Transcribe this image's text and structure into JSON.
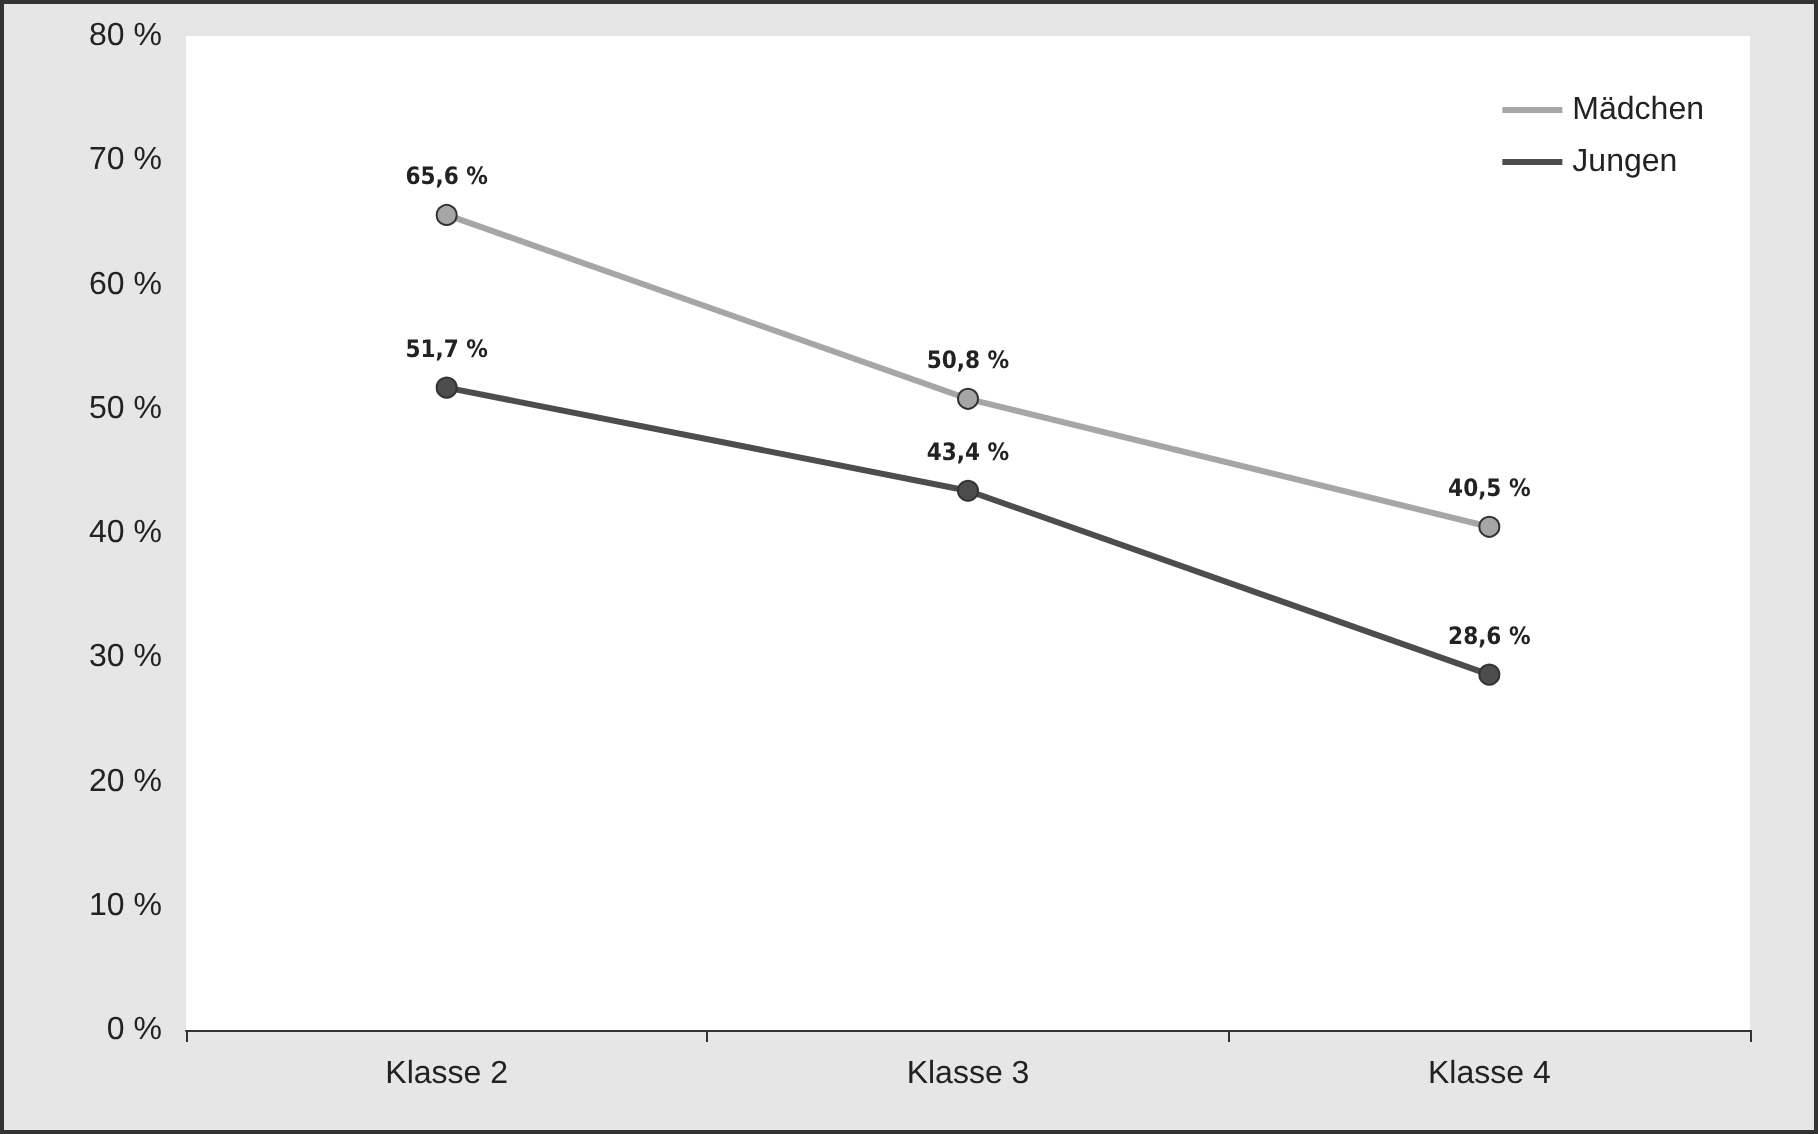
{
  "chart_data": {
    "type": "line",
    "categories": [
      "Klasse 2",
      "Klasse 3",
      "Klasse 4"
    ],
    "series": [
      {
        "name": "Mädchen",
        "color": "#a6a6a6",
        "values": [
          65.6,
          50.8,
          40.5
        ],
        "value_labels": [
          "65,6 %",
          "50,8 %",
          "40,5 %"
        ]
      },
      {
        "name": "Jungen",
        "color": "#4d4d4d",
        "values": [
          51.7,
          43.4,
          28.6
        ],
        "value_labels": [
          "51,7 %",
          "43,4 %",
          "28,6 %"
        ]
      }
    ],
    "ylim": [
      0,
      80
    ],
    "yticks": [
      {
        "value": 0,
        "label": "0 %"
      },
      {
        "value": 10,
        "label": "10 %"
      },
      {
        "value": 20,
        "label": "20 %"
      },
      {
        "value": 30,
        "label": "30 %"
      },
      {
        "value": 40,
        "label": "40 %"
      },
      {
        "value": 50,
        "label": "50 %"
      },
      {
        "value": 60,
        "label": "60 %"
      },
      {
        "value": 70,
        "label": "70 %"
      },
      {
        "value": 80,
        "label": "80 %"
      }
    ],
    "grid": false,
    "legend": "top right",
    "marker": "circle",
    "line_style": "solid"
  }
}
